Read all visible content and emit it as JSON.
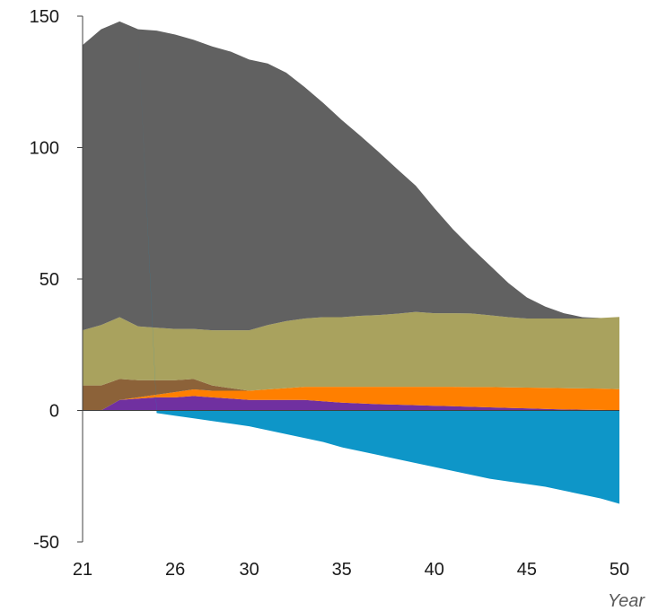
{
  "chart_data": {
    "type": "area",
    "stacked": true,
    "title": "",
    "xlabel": "Year",
    "ylabel": "",
    "xlim": [
      21,
      50
    ],
    "ylim": [
      -50,
      150
    ],
    "x_ticks": [
      "21",
      "26",
      "30",
      "35",
      "40",
      "45",
      "50"
    ],
    "y_ticks": [
      "150",
      "100",
      "50",
      "0",
      "-50"
    ],
    "x": [
      21,
      22,
      23,
      24,
      25,
      26,
      27,
      28,
      29,
      30,
      31,
      32,
      33,
      34,
      35,
      36,
      37,
      38,
      39,
      40,
      41,
      42,
      43,
      44,
      45,
      46,
      47,
      48,
      49,
      50
    ],
    "series": [
      {
        "color": "#7030a0",
        "values": [
          0,
          0,
          4,
          4.5,
          5,
          5,
          5.5,
          5,
          4.5,
          4,
          4,
          4,
          4,
          3.5,
          3,
          2.7,
          2.4,
          2.2,
          2,
          1.8,
          1.6,
          1.4,
          1.2,
          1,
          0.8,
          0.6,
          0.4,
          0.3,
          0.2,
          0.1
        ]
      },
      {
        "color": "#ff7f00",
        "values": [
          0,
          0,
          0,
          0.5,
          1,
          2,
          2.5,
          2.5,
          3,
          3.5,
          4,
          4.5,
          5,
          5.5,
          6,
          6.3,
          6.6,
          6.8,
          7,
          7.2,
          7.4,
          7.5,
          7.7,
          7.8,
          7.9,
          8,
          8.1,
          8.1,
          8.1,
          8
        ]
      },
      {
        "color": "#8c6239",
        "values": [
          9.5,
          9.5,
          8,
          6.5,
          5.5,
          4.5,
          4,
          2,
          1,
          0,
          0,
          0,
          0,
          0,
          0,
          0,
          0,
          0,
          0,
          0,
          0,
          0,
          0,
          0,
          0,
          0,
          0,
          0,
          0,
          0
        ]
      },
      {
        "color": "#a9a25e",
        "values": [
          21,
          23,
          23.5,
          20.5,
          20,
          19.5,
          19,
          21,
          22,
          23,
          24.5,
          25.5,
          26,
          26.5,
          26.5,
          27,
          27.3,
          27.8,
          28.5,
          28,
          28,
          28,
          27.3,
          26.7,
          26.3,
          26.4,
          26.5,
          26.6,
          26.9,
          27.5
        ]
      },
      {
        "color": "#616161",
        "values": [
          108.5,
          112.5,
          112.5,
          113,
          113,
          112,
          110,
          108,
          106,
          103,
          99.5,
          94.5,
          88,
          81.5,
          75,
          68.5,
          62,
          55,
          48,
          40,
          32,
          25,
          19,
          13,
          8,
          4.5,
          2,
          0.5,
          0,
          0
        ]
      },
      {
        "color": "#0e96c8",
        "values": [
          0,
          0,
          0,
          0,
          -1,
          -2,
          -3,
          -4,
          -5,
          -6,
          -7.5,
          -9,
          -10.5,
          -12,
          -14,
          -15.5,
          -17,
          -18.5,
          -20,
          -21.5,
          -23,
          -24.5,
          -26,
          -27,
          -28,
          -29,
          -30.5,
          -32,
          -33.5,
          -35.5
        ]
      }
    ]
  }
}
